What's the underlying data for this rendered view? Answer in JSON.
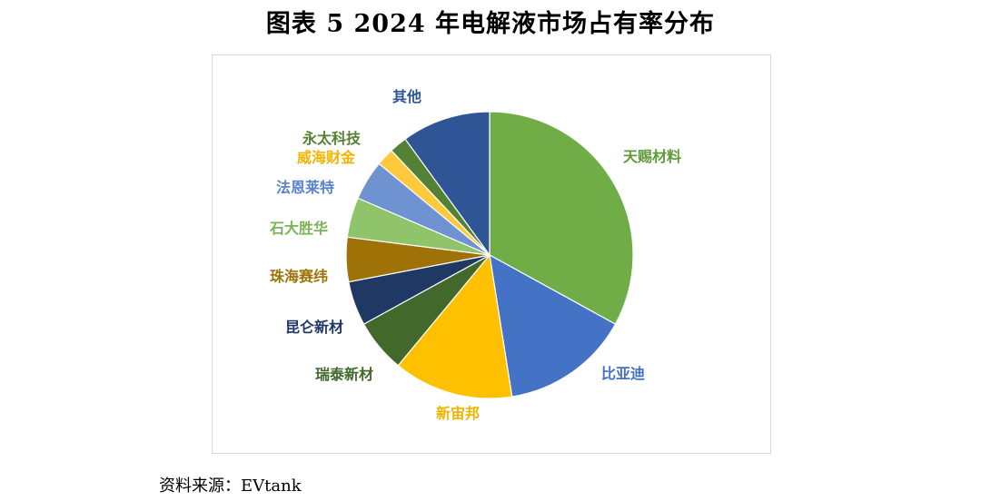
{
  "figure": {
    "title": "图表 5    2024 年电解液市场占有率分布",
    "source": "资料来源：EVtank"
  },
  "chart_data": {
    "type": "pie",
    "title": "",
    "start_angle_deg": 0,
    "direction": "clockwise",
    "slices": [
      {
        "label": "天赐材料",
        "value": 33.0,
        "color": "#70ad47",
        "label_color": "#5f9a3a"
      },
      {
        "label": "比亚迪",
        "value": 14.5,
        "color": "#4472c4",
        "label_color": "#4472c4"
      },
      {
        "label": "新宙邦",
        "value": 13.5,
        "color": "#ffc000",
        "label_color": "#f0b400"
      },
      {
        "label": "瑞泰新材",
        "value": 6.0,
        "color": "#43682b",
        "label_color": "#43682b"
      },
      {
        "label": "昆仑新材",
        "value": 5.0,
        "color": "#203864",
        "label_color": "#203864"
      },
      {
        "label": "珠海赛纬",
        "value": 5.0,
        "color": "#9e7206",
        "label_color": "#9e7206"
      },
      {
        "label": "石大胜华",
        "value": 4.5,
        "color": "#8fc46b",
        "label_color": "#79b356"
      },
      {
        "label": "法恩莱特",
        "value": 4.5,
        "color": "#6f93d1",
        "label_color": "#5b84cc"
      },
      {
        "label": "威海财金",
        "value": 2.0,
        "color": "#ffc93c",
        "label_color": "#f4b400"
      },
      {
        "label": "永太科技",
        "value": 2.0,
        "color": "#548235",
        "label_color": "#548235"
      },
      {
        "label": "其他",
        "value": 10.0,
        "color": "#2f5597",
        "label_color": "#2f5597"
      }
    ]
  }
}
